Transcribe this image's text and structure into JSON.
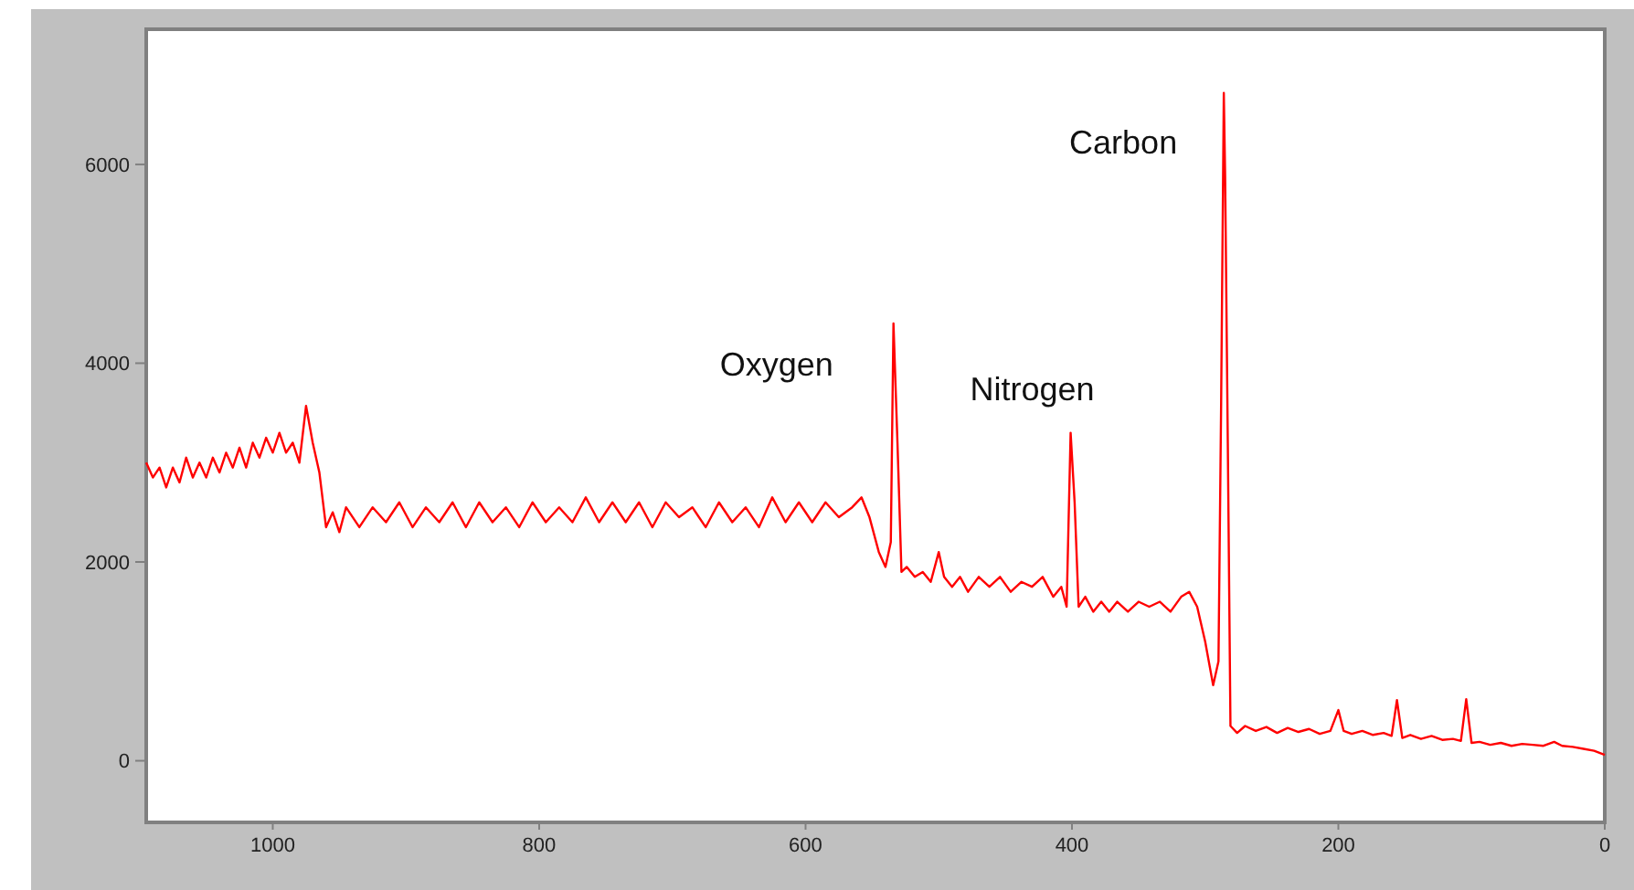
{
  "chart_data": {
    "type": "line",
    "xlim": [
      1095,
      0
    ],
    "ylim": [
      -620,
      7360
    ],
    "xticks": [
      1000,
      800,
      600,
      400,
      200,
      0
    ],
    "yticks": [
      0,
      2000,
      4000,
      6000
    ],
    "line_style": "solid",
    "annotations": [
      {
        "text": "Oxygen",
        "x": 534,
        "y": 4400
      },
      {
        "text": "Nitrogen",
        "x": 401,
        "y": 3300
      },
      {
        "text": "Carbon",
        "x": 286,
        "y": 6720
      }
    ],
    "series": [
      {
        "color": "#ff0000",
        "x": [
          1095,
          1090,
          1085,
          1080,
          1075,
          1070,
          1065,
          1060,
          1055,
          1050,
          1045,
          1040,
          1035,
          1030,
          1025,
          1020,
          1015,
          1010,
          1005,
          1000,
          995,
          990,
          985,
          980,
          975,
          970,
          965,
          960,
          955,
          950,
          945,
          935,
          925,
          915,
          905,
          895,
          885,
          875,
          865,
          855,
          845,
          835,
          825,
          815,
          805,
          795,
          785,
          775,
          765,
          755,
          745,
          735,
          725,
          715,
          705,
          695,
          685,
          675,
          665,
          655,
          645,
          635,
          625,
          615,
          605,
          595,
          585,
          575,
          565,
          558,
          552,
          545,
          540,
          536,
          534,
          531,
          528,
          524,
          518,
          512,
          506,
          500,
          496,
          490,
          484,
          478,
          470,
          462,
          454,
          446,
          438,
          430,
          422,
          414,
          408,
          404,
          401,
          398,
          395,
          390,
          384,
          378,
          372,
          366,
          358,
          350,
          342,
          334,
          326,
          318,
          312,
          306,
          300,
          294,
          290,
          288,
          286,
          285,
          283,
          281,
          276,
          270,
          262,
          254,
          246,
          238,
          230,
          222,
          214,
          206,
          200,
          196,
          190,
          182,
          174,
          166,
          160,
          156,
          152,
          146,
          138,
          130,
          122,
          114,
          108,
          104,
          100,
          94,
          86,
          78,
          70,
          62,
          54,
          46,
          38,
          32,
          24,
          16,
          8,
          0
        ],
        "values": [
          3000,
          2850,
          2950,
          2750,
          2950,
          2800,
          3050,
          2850,
          3000,
          2850,
          3050,
          2900,
          3100,
          2950,
          3150,
          2950,
          3200,
          3050,
          3250,
          3100,
          3300,
          3100,
          3200,
          3000,
          3570,
          3200,
          2900,
          2350,
          2500,
          2300,
          2550,
          2350,
          2550,
          2400,
          2600,
          2350,
          2550,
          2400,
          2600,
          2350,
          2600,
          2400,
          2550,
          2350,
          2600,
          2400,
          2550,
          2400,
          2650,
          2400,
          2600,
          2400,
          2600,
          2350,
          2600,
          2450,
          2550,
          2350,
          2600,
          2400,
          2550,
          2350,
          2650,
          2400,
          2600,
          2400,
          2600,
          2450,
          2550,
          2650,
          2450,
          2100,
          1950,
          2200,
          4400,
          3200,
          1900,
          1950,
          1850,
          1900,
          1800,
          2100,
          1850,
          1750,
          1850,
          1700,
          1850,
          1750,
          1850,
          1700,
          1800,
          1750,
          1850,
          1650,
          1750,
          1550,
          3300,
          2600,
          1550,
          1650,
          1500,
          1600,
          1500,
          1600,
          1500,
          1600,
          1550,
          1600,
          1500,
          1650,
          1700,
          1550,
          1200,
          760,
          1000,
          3600,
          6720,
          5880,
          3200,
          350,
          280,
          350,
          300,
          340,
          280,
          330,
          290,
          320,
          270,
          300,
          510,
          300,
          270,
          300,
          260,
          280,
          250,
          610,
          230,
          260,
          220,
          250,
          210,
          220,
          200,
          620,
          180,
          190,
          160,
          180,
          150,
          170,
          160,
          150,
          190,
          150,
          140,
          120,
          100,
          60
        ]
      }
    ]
  }
}
